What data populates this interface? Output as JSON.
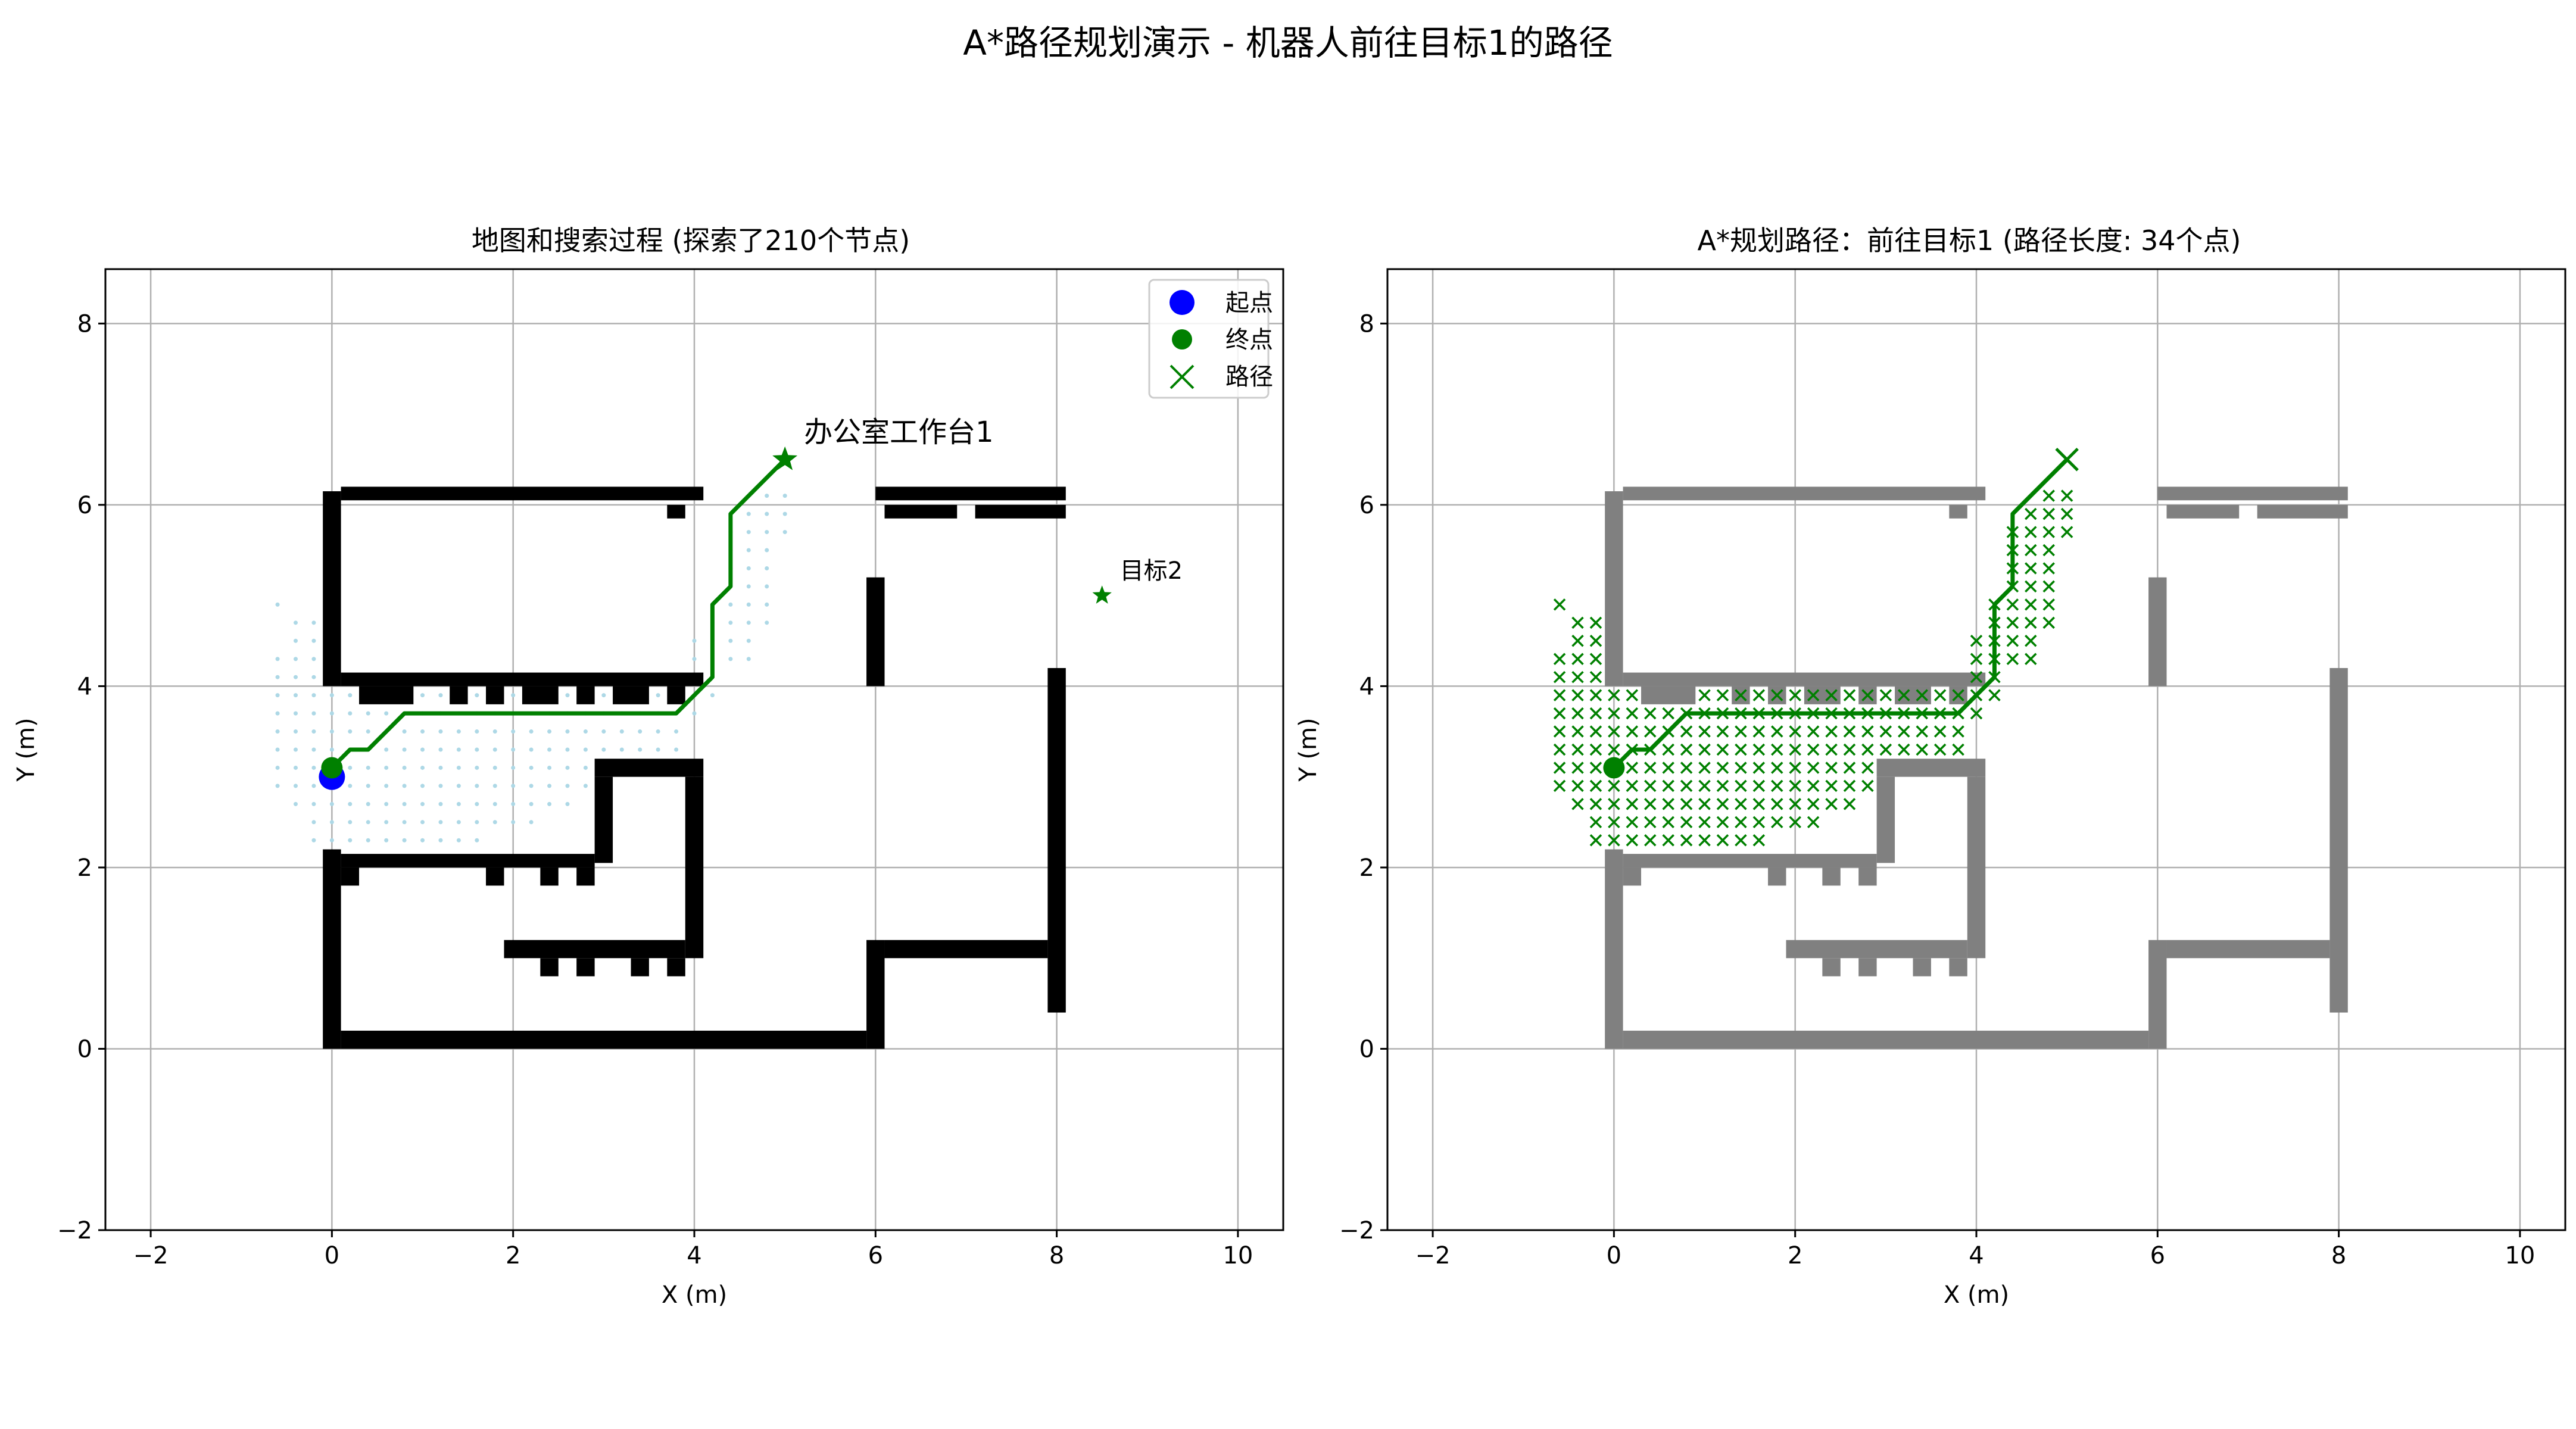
{
  "figure": {
    "suptitle": "A*路径规划演示 - 机器人前往目标1的路径"
  },
  "chart_data": [
    {
      "type": "scatter",
      "title": "地图和搜索过程 (探索了210个节点)",
      "xlabel": "X (m)",
      "ylabel": "Y (m)",
      "xlim": [
        -2.5,
        10.5
      ],
      "ylim": [
        -2,
        8.6
      ],
      "xticks": [
        -2,
        0,
        2,
        4,
        6,
        8,
        10
      ],
      "yticks": [
        -2,
        0,
        2,
        4,
        6,
        8
      ],
      "grid": true,
      "obstacle_color": "#000000",
      "path_color": "#008000",
      "explored_color": "#add8e6",
      "legend": {
        "placement": "top-right",
        "entries": [
          {
            "label": "起点",
            "marker": "circle",
            "color": "#0000ff"
          },
          {
            "label": "终点",
            "marker": "circle",
            "color": "#008000"
          },
          {
            "label": "路径",
            "marker": "x",
            "color": "#008000"
          }
        ]
      },
      "start": [
        0,
        3.0
      ],
      "path_start": [
        0,
        3.1
      ],
      "path": [
        [
          0,
          3.1
        ],
        [
          0.2,
          3.3
        ],
        [
          0.4,
          3.3
        ],
        [
          0.6,
          3.5
        ],
        [
          0.8,
          3.7
        ],
        [
          3.8,
          3.7
        ],
        [
          4.0,
          3.9
        ],
        [
          4.2,
          4.1
        ],
        [
          4.2,
          4.9
        ],
        [
          4.4,
          5.1
        ],
        [
          4.4,
          5.9
        ],
        [
          4.6,
          6.1
        ],
        [
          4.8,
          6.3
        ],
        [
          5.0,
          6.5
        ]
      ],
      "goals": [
        {
          "name": "办公室工作台1",
          "x": 5.0,
          "y": 6.5,
          "highlight": true
        },
        {
          "name": "目标2",
          "x": 8.5,
          "y": 5.0,
          "highlight": false
        }
      ]
    },
    {
      "type": "scatter",
      "title": "A*规划路径：前往目标1 (路径长度: 34个点)",
      "xlabel": "X (m)",
      "ylabel": "Y (m)",
      "xlim": [
        -2.5,
        10.5
      ],
      "ylim": [
        -2,
        8.6
      ],
      "xticks": [
        -2,
        0,
        2,
        4,
        6,
        8,
        10
      ],
      "yticks": [
        -2,
        0,
        2,
        4,
        6,
        8
      ],
      "grid": true,
      "obstacle_color": "#808080",
      "path_color": "#008000",
      "path_start": [
        0,
        3.1
      ],
      "path_end": [
        5.0,
        6.5
      ],
      "path": [
        [
          0,
          3.1
        ],
        [
          0.2,
          3.3
        ],
        [
          0.4,
          3.3
        ],
        [
          0.6,
          3.5
        ],
        [
          0.8,
          3.7
        ],
        [
          3.8,
          3.7
        ],
        [
          4.0,
          3.9
        ],
        [
          4.2,
          4.1
        ],
        [
          4.2,
          4.9
        ],
        [
          4.4,
          5.1
        ],
        [
          4.4,
          5.9
        ],
        [
          4.6,
          6.1
        ],
        [
          4.8,
          6.3
        ],
        [
          5.0,
          6.5
        ]
      ]
    }
  ],
  "obstacles": [
    [
      0.1,
      6.05,
      4.0,
      0.15
    ],
    [
      6.0,
      6.05,
      2.1,
      0.15
    ],
    [
      3.7,
      5.85,
      0.2,
      0.15
    ],
    [
      6.1,
      5.85,
      0.8,
      0.15
    ],
    [
      7.1,
      5.85,
      1.0,
      0.15
    ],
    [
      -0.1,
      4.0,
      0.2,
      2.15
    ],
    [
      -0.1,
      0.0,
      0.2,
      2.2
    ],
    [
      0.1,
      4.0,
      4.0,
      0.15
    ],
    [
      0.3,
      3.8,
      0.6,
      0.2
    ],
    [
      1.3,
      3.8,
      0.2,
      0.2
    ],
    [
      1.7,
      3.8,
      0.2,
      0.2
    ],
    [
      2.1,
      3.8,
      0.4,
      0.2
    ],
    [
      2.7,
      3.8,
      0.2,
      0.2
    ],
    [
      3.1,
      3.8,
      0.4,
      0.2
    ],
    [
      3.7,
      3.8,
      0.2,
      0.2
    ],
    [
      5.9,
      4.0,
      0.2,
      1.2
    ],
    [
      7.9,
      0.4,
      0.2,
      3.8
    ],
    [
      2.9,
      3.0,
      1.2,
      0.2
    ],
    [
      2.9,
      2.05,
      0.2,
      0.95
    ],
    [
      3.9,
      1.0,
      0.2,
      2.0
    ],
    [
      0.1,
      2.0,
      2.8,
      0.15
    ],
    [
      0.1,
      1.8,
      0.2,
      0.2
    ],
    [
      1.7,
      1.8,
      0.2,
      0.2
    ],
    [
      2.3,
      1.8,
      0.2,
      0.2
    ],
    [
      2.7,
      1.8,
      0.2,
      0.2
    ],
    [
      1.9,
      1.0,
      2.0,
      0.2
    ],
    [
      2.3,
      0.8,
      0.2,
      0.2
    ],
    [
      2.7,
      0.8,
      0.2,
      0.2
    ],
    [
      3.3,
      0.8,
      0.2,
      0.2
    ],
    [
      3.7,
      0.8,
      0.2,
      0.2
    ],
    [
      0.1,
      0.0,
      5.8,
      0.2
    ],
    [
      5.9,
      0.0,
      0.2,
      1.2
    ],
    [
      6.1,
      1.0,
      1.8,
      0.2
    ]
  ],
  "explored_rows": [
    {
      "y": 6.1,
      "x0": 4.8,
      "x1": 5.0
    },
    {
      "y": 5.9,
      "x0": 4.6,
      "x1": 5.0
    },
    {
      "y": 5.7,
      "x0": 4.4,
      "x1": 5.0
    },
    {
      "y": 5.5,
      "x0": 4.4,
      "x1": 4.8
    },
    {
      "y": 5.3,
      "x0": 4.4,
      "x1": 4.8
    },
    {
      "y": 5.1,
      "x0": 4.4,
      "x1": 4.8
    },
    {
      "y": 4.9,
      "x0": -0.6,
      "x1": -0.6
    },
    {
      "y": 4.9,
      "x0": 4.2,
      "x1": 4.8
    },
    {
      "y": 4.7,
      "x0": -0.4,
      "x1": -0.2
    },
    {
      "y": 4.7,
      "x0": 4.2,
      "x1": 4.8
    },
    {
      "y": 4.5,
      "x0": -0.4,
      "x1": -0.2
    },
    {
      "y": 4.5,
      "x0": 4.0,
      "x1": 4.6
    },
    {
      "y": 4.3,
      "x0": -0.6,
      "x1": -0.2
    },
    {
      "y": 4.3,
      "x0": 4.0,
      "x1": 4.6
    },
    {
      "y": 4.1,
      "x0": -0.6,
      "x1": -0.2
    },
    {
      "y": 4.1,
      "x0": 4.0,
      "x1": 4.2
    },
    {
      "y": 3.9,
      "x0": -0.6,
      "x1": 0.2
    },
    {
      "y": 3.9,
      "x0": 1.0,
      "x1": 4.2
    },
    {
      "y": 3.7,
      "x0": -0.6,
      "x1": 4.0
    },
    {
      "y": 3.5,
      "x0": -0.6,
      "x1": 3.8
    },
    {
      "y": 3.3,
      "x0": -0.6,
      "x1": 3.8
    },
    {
      "y": 3.1,
      "x0": -0.6,
      "x1": 2.8
    },
    {
      "y": 2.9,
      "x0": -0.6,
      "x1": 2.8
    },
    {
      "y": 2.7,
      "x0": -0.4,
      "x1": 2.6
    },
    {
      "y": 2.5,
      "x0": -0.2,
      "x1": 2.2
    },
    {
      "y": 2.3,
      "x0": -0.2,
      "x1": 1.6
    }
  ]
}
